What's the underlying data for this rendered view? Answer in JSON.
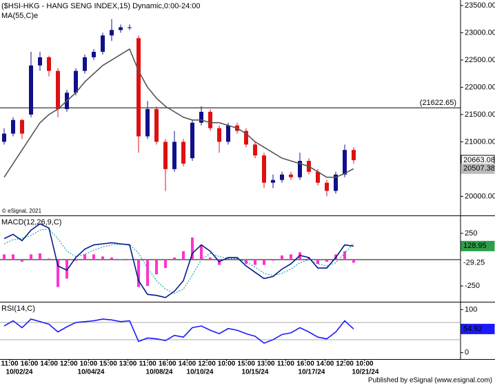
{
  "chart_data": [
    {
      "type": "candlestick",
      "title": "($HSI-HKG - HANG SENG INDEX,15) Dynamic,0:00-24:00",
      "subtitle": "MA(55,C)e",
      "watermark": "© eSignal, 2021",
      "up_color": "#10108a",
      "down_color": "#e01010",
      "open": [
        21000,
        21150,
        21400,
        21500,
        22400,
        22550,
        22300,
        21600,
        21900,
        22300,
        22550,
        22650,
        22950,
        23050,
        23100,
        22900,
        21100,
        21600,
        21000,
        20500,
        21000,
        20700,
        21350,
        21550,
        21250,
        21000,
        21300,
        21200,
        20950,
        20750,
        20250,
        20300,
        20400,
        20350,
        20650,
        20450,
        20250,
        20100,
        20400,
        20850
      ],
      "high": [
        21250,
        21450,
        21420,
        22650,
        22650,
        22580,
        22350,
        21950,
        22350,
        22600,
        22700,
        23000,
        23250,
        23150,
        23150,
        22950,
        21750,
        21650,
        21050,
        21200,
        21050,
        21400,
        21650,
        21600,
        21300,
        21350,
        21350,
        21250,
        21000,
        20800,
        20400,
        20450,
        20450,
        20800,
        20700,
        20500,
        20300,
        20450,
        20950,
        20900
      ],
      "low": [
        20950,
        21100,
        21050,
        21450,
        22300,
        22200,
        21450,
        21550,
        21850,
        22250,
        22500,
        22600,
        22850,
        23000,
        23050,
        20800,
        21050,
        20950,
        20100,
        20450,
        20550,
        20650,
        21300,
        21200,
        20800,
        20950,
        21150,
        20900,
        20700,
        20150,
        20150,
        20250,
        20300,
        20300,
        20400,
        20200,
        20000,
        20050,
        20350,
        20600
      ],
      "close": [
        21150,
        21400,
        21150,
        22400,
        22550,
        22300,
        21600,
        21900,
        22300,
        22550,
        22650,
        22950,
        23050,
        23100,
        23100,
        21100,
        21600,
        21000,
        20500,
        21000,
        20600,
        21350,
        21550,
        21250,
        21000,
        21300,
        21200,
        20950,
        20750,
        20250,
        20300,
        20400,
        20350,
        20650,
        20450,
        20250,
        20100,
        20400,
        20850,
        20663.08
      ],
      "ma": {
        "name": "MA(55,C)e",
        "color": "#555555",
        "values": [
          20350,
          20600,
          20850,
          21100,
          21350,
          21500,
          21600,
          21750,
          21900,
          22100,
          22250,
          22400,
          22500,
          22600,
          22700,
          22300,
          22000,
          21800,
          21650,
          21550,
          21450,
          21400,
          21400,
          21350,
          21350,
          21300,
          21250,
          21150,
          21000,
          20900,
          20800,
          20700,
          20650,
          20600,
          20550,
          20450,
          20350,
          20350,
          20420,
          20507.38
        ]
      },
      "levels": [
        {
          "value": 21622.65,
          "label": "(21622.65)"
        }
      ],
      "ylim": [
        19650,
        23600
      ],
      "yticks": [
        {
          "value": 20000,
          "label": "20000.00"
        },
        {
          "value": 20500,
          "label": "20500.00"
        },
        {
          "value": 21000,
          "label": "21000.00"
        },
        {
          "value": 21500,
          "label": "21500.00"
        },
        {
          "value": 22000,
          "label": "22000.00"
        },
        {
          "value": 22500,
          "label": "22500.00"
        },
        {
          "value": 23000,
          "label": "23000.00"
        },
        {
          "value": 23500,
          "label": "23500.00"
        }
      ]
    },
    {
      "type": "macd",
      "title": "MACD(12,26,9,C)",
      "macd": {
        "color": "#001a8c",
        "values": [
          200,
          240,
          180,
          280,
          340,
          300,
          -60,
          -100,
          20,
          100,
          140,
          150,
          160,
          150,
          140,
          -200,
          -330,
          -340,
          -360,
          -300,
          -200,
          60,
          140,
          80,
          -20,
          20,
          20,
          -60,
          -120,
          -180,
          -160,
          -90,
          -40,
          40,
          20,
          -80,
          -80,
          20,
          140,
          128.95
        ]
      },
      "signal": {
        "color": "#20a0a0",
        "values": [
          150,
          190,
          200,
          230,
          280,
          290,
          200,
          80,
          30,
          50,
          90,
          120,
          140,
          145,
          145,
          60,
          -80,
          -200,
          -280,
          -320,
          -280,
          -150,
          0,
          60,
          30,
          10,
          10,
          -20,
          -70,
          -130,
          -150,
          -130,
          -90,
          -30,
          0,
          -40,
          -60,
          -30,
          60,
          158.2
        ]
      },
      "histogram": {
        "color": "#ff33cc",
        "values": [
          50,
          50,
          -20,
          50,
          60,
          10,
          -260,
          -180,
          -10,
          50,
          50,
          30,
          20,
          5,
          -5,
          -260,
          -250,
          -140,
          -80,
          20,
          80,
          210,
          140,
          20,
          -50,
          10,
          10,
          -40,
          -50,
          -50,
          -10,
          40,
          50,
          70,
          20,
          -40,
          -20,
          50,
          80,
          -29.25
        ]
      },
      "levels": [
        0
      ],
      "ylim": [
        -400,
        400
      ],
      "yticks": [
        -250,
        250
      ]
    },
    {
      "type": "line",
      "title": "RSI(14,C)",
      "color": "#1a1aff",
      "values": [
        62,
        74,
        58,
        78,
        72,
        66,
        48,
        60,
        70,
        72,
        74,
        78,
        76,
        72,
        74,
        26,
        34,
        32,
        28,
        40,
        36,
        58,
        62,
        52,
        44,
        56,
        52,
        44,
        38,
        22,
        30,
        42,
        46,
        58,
        48,
        36,
        32,
        48,
        74,
        54.92
      ],
      "levels": [
        70,
        30
      ],
      "ylim": [
        -15,
        115
      ],
      "yticks": [
        0,
        100
      ],
      "xtick_times": [
        "11:00",
        "16:00",
        "14:00",
        "12:00",
        "10:00",
        "15:00",
        "13:00",
        "11:00",
        "16:00",
        "14:00",
        "12:00",
        "10:00",
        "15:00",
        "13:00",
        "11:00",
        "16:00",
        "14:00",
        "12:00",
        "10:00"
      ],
      "xtick_dates": [
        "10/02/24",
        "10/04/24",
        "10/08/24",
        "10/10/24",
        "10/15/24",
        "10/17/24",
        "10/21/24"
      ]
    }
  ],
  "footer": "Published by eSignal (www.esignal.com)"
}
